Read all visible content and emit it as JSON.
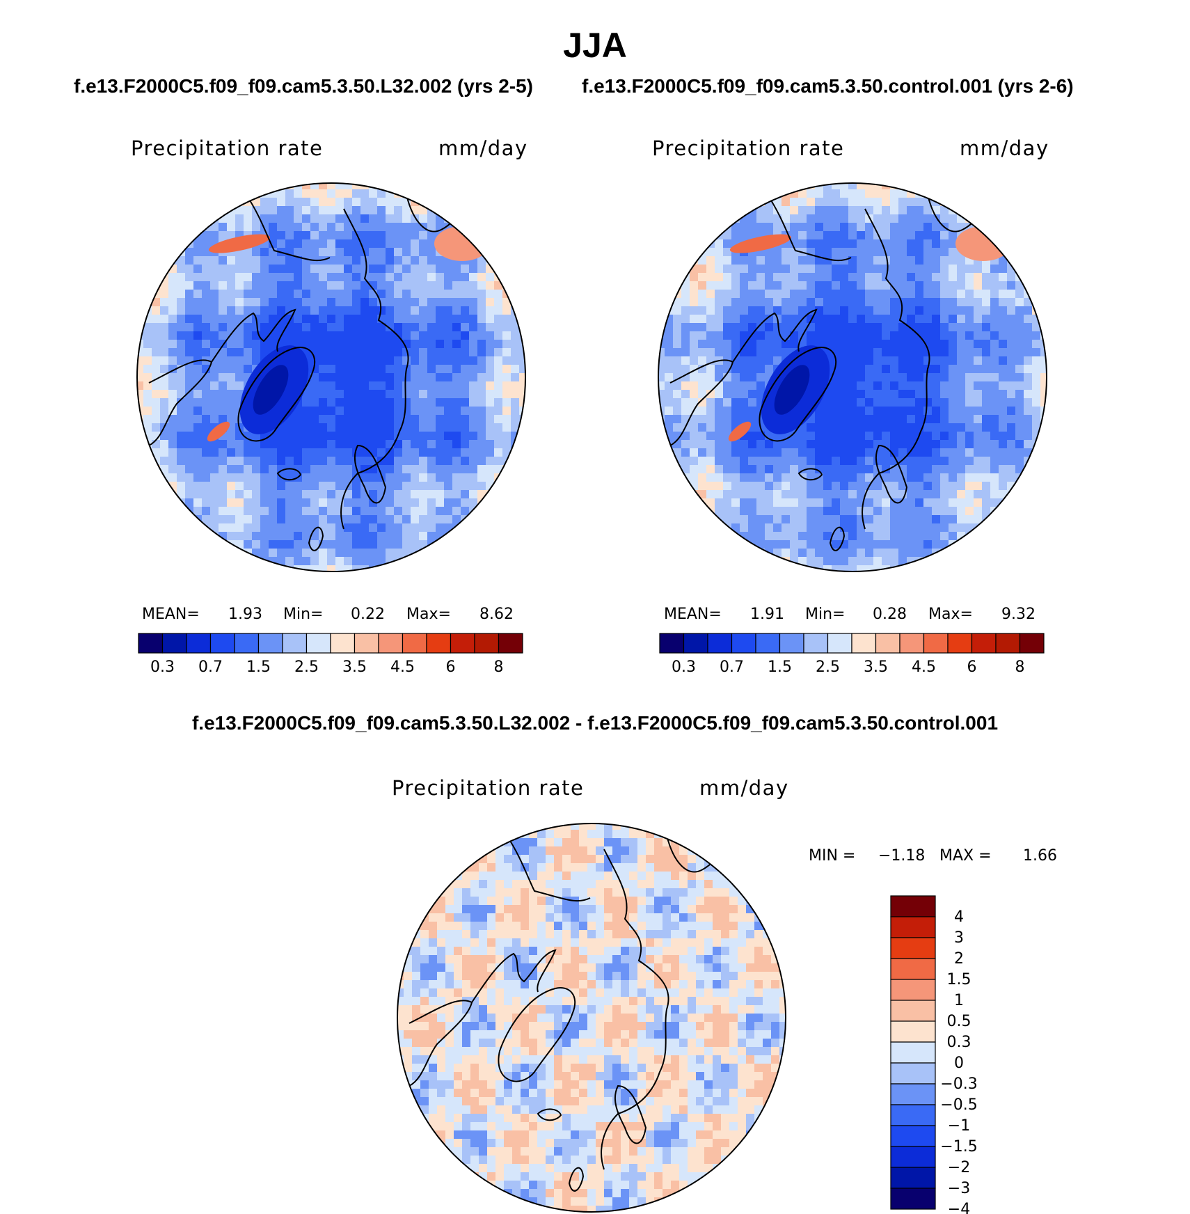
{
  "title": "JJA",
  "panels": [
    {
      "case": "f.e13.F2000C5.f09_f09.cam5.3.50.L32.002 (yrs 2-5)",
      "variable": "Precipitation rate",
      "units": "mm/day",
      "stats": {
        "mean_label": "MEAN=",
        "mean": "1.93",
        "min_label": "Min=",
        "min": "0.22",
        "max_label": "Max=",
        "max": "8.62"
      }
    },
    {
      "case": "f.e13.F2000C5.f09_f09.cam5.3.50.control.001 (yrs 2-6)",
      "variable": "Precipitation rate",
      "units": "mm/day",
      "stats": {
        "mean_label": "MEAN=",
        "mean": "1.91",
        "min_label": "Min=",
        "min": "0.28",
        "max_label": "Max=",
        "max": "9.32"
      }
    }
  ],
  "difference": {
    "title": "f.e13.F2000C5.f09_f09.cam5.3.50.L32.002 - f.e13.F2000C5.f09_f09.cam5.3.50.control.001",
    "variable": "Precipitation rate",
    "units": "mm/day",
    "stats": {
      "min_label": "MIN =",
      "min": "−1.18",
      "max_label": "MAX =",
      "max": "1.66"
    }
  },
  "colors": {
    "abs_scale": [
      "#08006e",
      "#0016a8",
      "#0c2cd8",
      "#1e4af0",
      "#3a6af5",
      "#6b93f6",
      "#a8c2f8",
      "#d6e6fb",
      "#fde3cf",
      "#f9c0a5",
      "#f59679",
      "#f06a45",
      "#e53d12",
      "#c41e08",
      "#b31a03",
      "#740006"
    ],
    "diff_scale": [
      "#08006e",
      "#0016a8",
      "#0c2cd8",
      "#1e4af0",
      "#3a6af5",
      "#6b93f6",
      "#a8c2f8",
      "#d6e6fb",
      "#fde3cf",
      "#f9c0a5",
      "#f59679",
      "#f06a45",
      "#e53d12",
      "#c41e08",
      "#740006"
    ],
    "land_outline": "#000000"
  },
  "chart_data": [
    {
      "type": "heatmap",
      "projection": "north polar stereographic",
      "title": "Precipitation rate",
      "units": "mm/day",
      "colorbar": {
        "orientation": "horizontal",
        "levels": [
          0.3,
          0.7,
          1.5,
          2.5,
          3.5,
          4.5,
          6,
          8
        ],
        "tick_labels": [
          "0.3",
          "0.7",
          "1.5",
          "2.5",
          "3.5",
          "4.5",
          "6",
          "8"
        ]
      },
      "mean": 1.93,
      "min": 0.22,
      "max": 8.62
    },
    {
      "type": "heatmap",
      "projection": "north polar stereographic",
      "title": "Precipitation rate",
      "units": "mm/day",
      "colorbar": {
        "orientation": "horizontal",
        "levels": [
          0.3,
          0.7,
          1.5,
          2.5,
          3.5,
          4.5,
          6,
          8
        ],
        "tick_labels": [
          "0.3",
          "0.7",
          "1.5",
          "2.5",
          "3.5",
          "4.5",
          "6",
          "8"
        ]
      },
      "mean": 1.91,
      "min": 0.28,
      "max": 9.32
    },
    {
      "type": "heatmap",
      "projection": "north polar stereographic",
      "title": "Precipitation rate",
      "units": "mm/day",
      "colorbar": {
        "orientation": "vertical",
        "levels": [
          4,
          3,
          2,
          1.5,
          1,
          0.5,
          0.3,
          0,
          -0.3,
          -0.5,
          -1,
          -1.5,
          -2,
          -3,
          -4
        ],
        "tick_labels": [
          "4",
          "3",
          "2",
          "1.5",
          "1",
          "0.5",
          "0.3",
          "0",
          "−0.3",
          "−0.5",
          "−1",
          "−1.5",
          "−2",
          "−3",
          "−4"
        ]
      },
      "min": -1.18,
      "max": 1.66
    }
  ]
}
